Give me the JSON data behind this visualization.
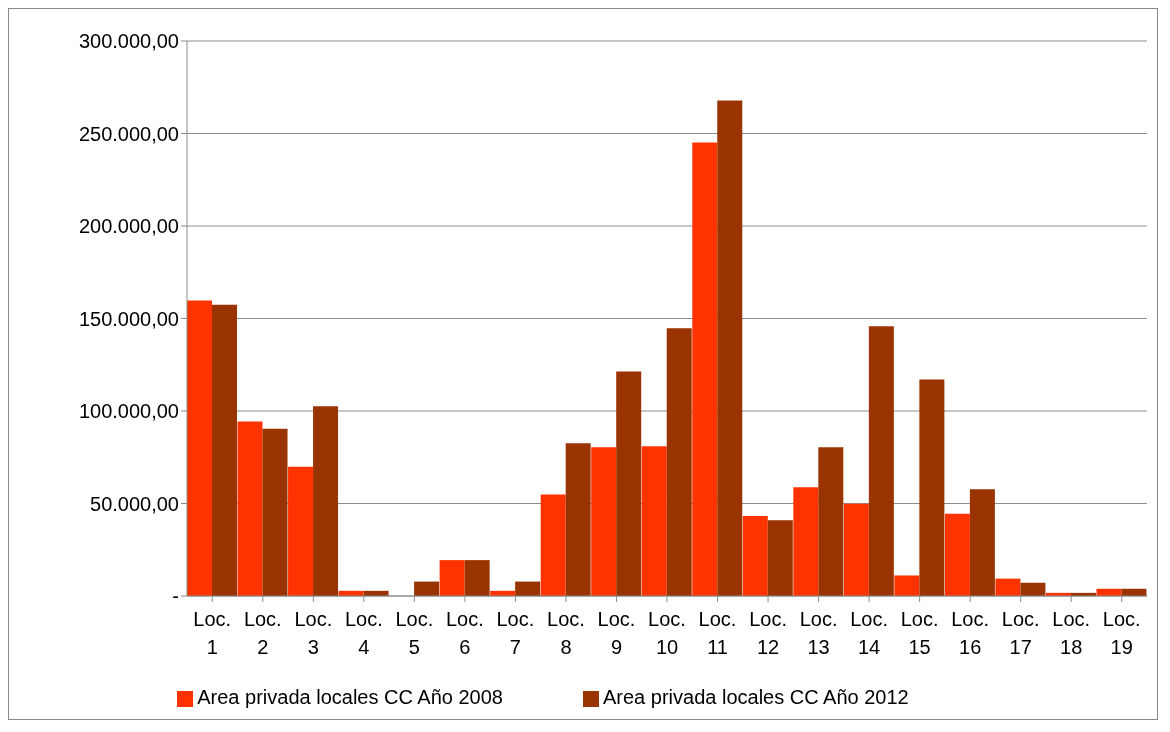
{
  "chart_data": {
    "type": "bar",
    "categories": [
      "Loc. 1",
      "Loc. 2",
      "Loc. 3",
      "Loc. 4",
      "Loc. 5",
      "Loc. 6",
      "Loc. 7",
      "Loc. 8",
      "Loc. 9",
      "Loc. 10",
      "Loc. 11",
      "Loc. 12",
      "Loc. 13",
      "Loc. 14",
      "Loc. 15",
      "Loc. 16",
      "Loc. 17",
      "Loc. 18",
      "Loc. 19"
    ],
    "series": [
      {
        "name": "Area privada locales CC Año 2008",
        "color": "#ff3300",
        "values": [
          159700,
          94300,
          69900,
          2800,
          0,
          19400,
          2800,
          54900,
          80400,
          81000,
          245100,
          43300,
          58800,
          49900,
          11100,
          44400,
          9400,
          1700,
          3900
        ]
      },
      {
        "name": "Area privada locales CC Año 2012",
        "color": "#993300",
        "values": [
          157500,
          90400,
          102600,
          2800,
          7800,
          19400,
          7800,
          82600,
          121400,
          144700,
          267800,
          41000,
          80400,
          145800,
          117000,
          57700,
          7200,
          1700,
          3900
        ]
      }
    ],
    "ylim": [
      0,
      300000
    ],
    "yticks": [
      {
        "value": 0,
        "label": "-"
      },
      {
        "value": 50000,
        "label": "50.000,00"
      },
      {
        "value": 100000,
        "label": "100.000,00"
      },
      {
        "value": 150000,
        "label": "150.000,00"
      },
      {
        "value": 200000,
        "label": "200.000,00"
      },
      {
        "value": 250000,
        "label": "250.000,00"
      },
      {
        "value": 300000,
        "label": "300.000,00"
      }
    ],
    "grid": "y",
    "legend": "bottom"
  }
}
